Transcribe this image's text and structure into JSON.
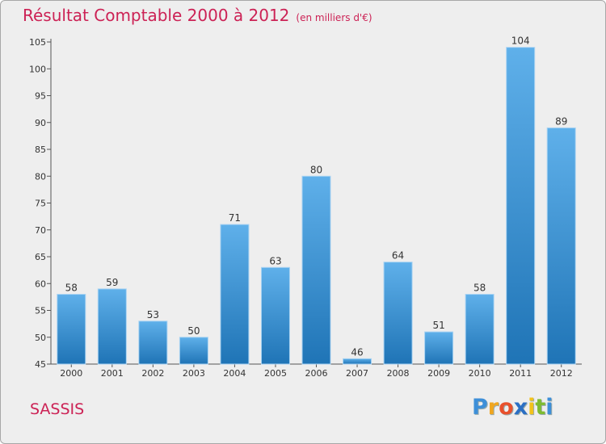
{
  "chart_data": {
    "type": "bar",
    "title": "Résultat Comptable 2000 à 2012",
    "subtitle": "(en milliers d'€)",
    "categories": [
      "2000",
      "2001",
      "2002",
      "2003",
      "2004",
      "2005",
      "2006",
      "2007",
      "2008",
      "2009",
      "2010",
      "2011",
      "2012"
    ],
    "values": [
      58,
      59,
      53,
      50,
      71,
      63,
      80,
      46,
      64,
      51,
      58,
      104,
      89
    ],
    "ylim": [
      45,
      105
    ],
    "yticks": [
      45,
      50,
      55,
      60,
      65,
      70,
      75,
      80,
      85,
      90,
      95,
      100,
      105
    ],
    "xlabel": "",
    "ylabel": "",
    "grid": false,
    "colors": {
      "bar_top": "#5fb0ea",
      "bar_bottom": "#1f74b6",
      "bar_border": "#a9d3f2",
      "title": "#cc2255"
    }
  },
  "footer": {
    "commune": "SASSIS",
    "logo_letters": [
      "P",
      "r",
      "o",
      "x",
      "i",
      "t",
      "i"
    ],
    "logo_colors": [
      "#3d8fd8",
      "#f0a61f",
      "#e8502c",
      "#2b6fc4",
      "#f2c21b",
      "#7dbb31",
      "#3d8fd8"
    ]
  }
}
